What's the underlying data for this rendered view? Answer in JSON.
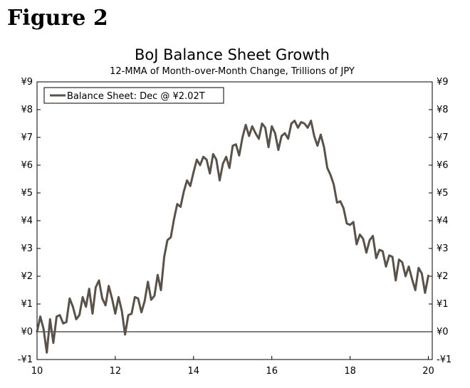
{
  "figure_label": "Figure 2",
  "chart_data": {
    "type": "line",
    "title": "BoJ Balance Sheet Growth",
    "subtitle": "12-MMA of Month-over-Month Change, Trillions of JPY",
    "xlabel": "",
    "ylabel": "",
    "xlim": [
      10,
      20.1
    ],
    "ylim": [
      -1,
      9
    ],
    "x_ticks": [
      10,
      12,
      14,
      16,
      18,
      20
    ],
    "x_tick_labels": [
      "10",
      "12",
      "14",
      "16",
      "18",
      "20"
    ],
    "y_ticks": [
      -1,
      0,
      1,
      2,
      3,
      4,
      5,
      6,
      7,
      8,
      9
    ],
    "y_tick_labels": [
      "-¥1",
      "¥0",
      "¥1",
      "¥2",
      "¥3",
      "¥4",
      "¥5",
      "¥6",
      "¥7",
      "¥8",
      "¥9"
    ],
    "grid": false,
    "zero_line": true,
    "legend_position": "top-left",
    "color": "#5a5249",
    "series": [
      {
        "name": "Balance Sheet: Dec @ ¥2.02T",
        "x": [
          10.0,
          10.083,
          10.167,
          10.25,
          10.333,
          10.417,
          10.5,
          10.583,
          10.667,
          10.75,
          10.833,
          10.917,
          11.0,
          11.083,
          11.167,
          11.25,
          11.333,
          11.417,
          11.5,
          11.583,
          11.667,
          11.75,
          11.833,
          11.917,
          12.0,
          12.083,
          12.167,
          12.25,
          12.333,
          12.417,
          12.5,
          12.583,
          12.667,
          12.75,
          12.833,
          12.917,
          13.0,
          13.083,
          13.167,
          13.25,
          13.333,
          13.417,
          13.5,
          13.583,
          13.667,
          13.75,
          13.833,
          13.917,
          14.0,
          14.083,
          14.167,
          14.25,
          14.333,
          14.417,
          14.5,
          14.583,
          14.667,
          14.75,
          14.833,
          14.917,
          15.0,
          15.083,
          15.167,
          15.25,
          15.333,
          15.417,
          15.5,
          15.583,
          15.667,
          15.75,
          15.833,
          15.917,
          16.0,
          16.083,
          16.167,
          16.25,
          16.333,
          16.417,
          16.5,
          16.583,
          16.667,
          16.75,
          16.833,
          16.917,
          17.0,
          17.083,
          17.167,
          17.25,
          17.333,
          17.417,
          17.5,
          17.583,
          17.667,
          17.75,
          17.833,
          17.917,
          18.0,
          18.083,
          18.167,
          18.25,
          18.333,
          18.417,
          18.5,
          18.583,
          18.667,
          18.75,
          18.833,
          18.917,
          19.0,
          19.083,
          19.167,
          19.25,
          19.333,
          19.417,
          19.5,
          19.583,
          19.667,
          19.75,
          19.833,
          19.917,
          20.0
        ],
        "values": [
          0.0,
          0.55,
          0.1,
          -0.75,
          0.45,
          -0.4,
          0.55,
          0.6,
          0.3,
          0.35,
          1.2,
          0.9,
          0.45,
          0.6,
          1.25,
          0.9,
          1.55,
          0.65,
          1.6,
          1.85,
          1.2,
          0.95,
          1.65,
          1.2,
          0.65,
          1.25,
          0.75,
          -0.1,
          0.6,
          0.65,
          1.25,
          1.2,
          0.7,
          1.1,
          1.8,
          1.15,
          1.3,
          2.05,
          1.5,
          2.7,
          3.3,
          3.4,
          4.05,
          4.6,
          4.5,
          5.05,
          5.45,
          5.25,
          5.75,
          6.2,
          6.0,
          6.3,
          6.2,
          5.7,
          6.4,
          6.2,
          5.45,
          6.05,
          6.3,
          5.9,
          6.7,
          6.75,
          6.35,
          7.0,
          7.45,
          7.05,
          7.4,
          7.15,
          6.95,
          7.5,
          7.35,
          6.65,
          7.4,
          7.15,
          6.55,
          7.05,
          7.15,
          6.95,
          7.5,
          7.6,
          7.35,
          7.55,
          7.5,
          7.35,
          7.6,
          7.05,
          6.7,
          7.1,
          6.65,
          5.9,
          5.65,
          5.3,
          4.65,
          4.7,
          4.45,
          3.9,
          3.85,
          3.95,
          3.15,
          3.5,
          3.35,
          2.85,
          3.3,
          3.45,
          2.65,
          2.95,
          2.9,
          2.35,
          2.75,
          2.7,
          1.85,
          2.6,
          2.5,
          2.0,
          2.35,
          1.9,
          1.5,
          2.3,
          2.1,
          1.4,
          2.02
        ]
      }
    ]
  }
}
